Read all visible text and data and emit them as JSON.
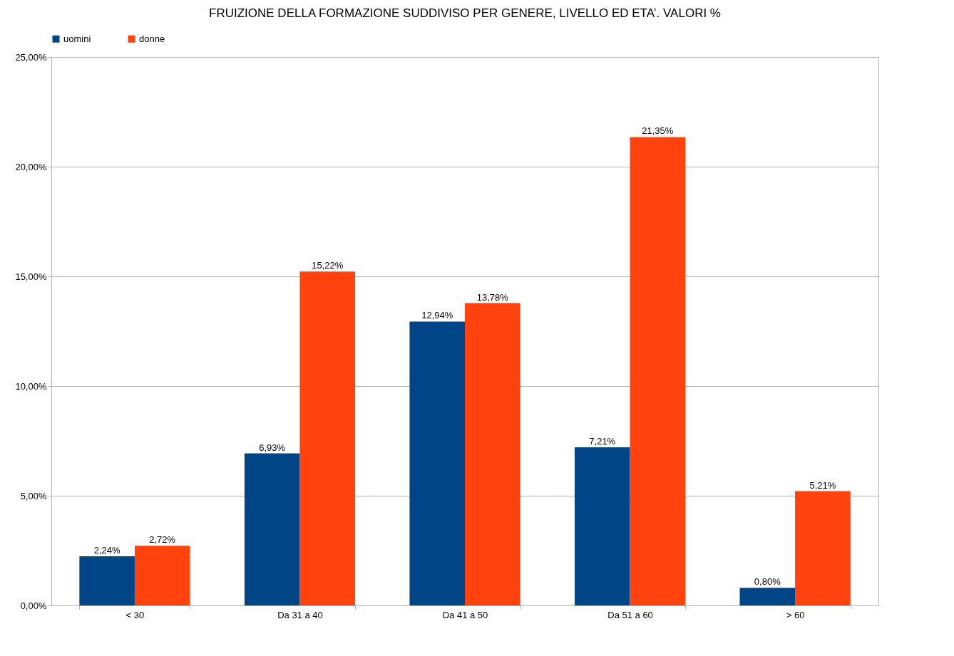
{
  "chart_data": {
    "type": "bar",
    "title": "FRUIZIONE DELLA FORMAZIONE SUDDIVISO PER GENERE, LIVELLO ED ETA’. VALORI %",
    "categories": [
      "< 30",
      "Da 31 a 40",
      "Da 41 a 50",
      "Da 51 a 60",
      "> 60"
    ],
    "series": [
      {
        "name": "uomini",
        "color": "#004586",
        "values": [
          2.24,
          6.93,
          12.94,
          7.21,
          0.8
        ],
        "value_labels": [
          "2,24%",
          "6,93%",
          "12,94%",
          "7,21%",
          "0,80%"
        ]
      },
      {
        "name": "donne",
        "color": "#ff420e",
        "values": [
          2.72,
          15.22,
          13.78,
          21.35,
          5.21
        ],
        "value_labels": [
          "2,72%",
          "15,22%",
          "13,78%",
          "21,35%",
          "5,21%"
        ]
      }
    ],
    "ylim": [
      0,
      25
    ],
    "yticks": [
      {
        "value": 0,
        "label": "0,00%"
      },
      {
        "value": 5,
        "label": "5,00%"
      },
      {
        "value": 10,
        "label": "10,00%"
      },
      {
        "value": 15,
        "label": "15,00%"
      },
      {
        "value": 20,
        "label": "20,00%"
      },
      {
        "value": 25,
        "label": "25,00%"
      }
    ],
    "grid": "y",
    "legend": "top"
  }
}
